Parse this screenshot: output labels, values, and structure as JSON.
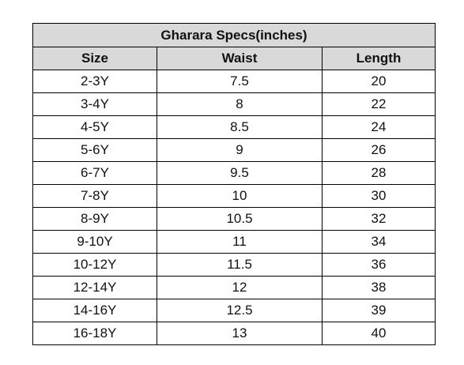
{
  "table": {
    "title": "Gharara Specs(inches)",
    "headers": [
      "Size",
      "Waist",
      "Length"
    ],
    "rows": [
      [
        "2-3Y",
        "7.5",
        "20"
      ],
      [
        "3-4Y",
        "8",
        "22"
      ],
      [
        "4-5Y",
        "8.5",
        "24"
      ],
      [
        "5-6Y",
        "9",
        "26"
      ],
      [
        "6-7Y",
        "9.5",
        "28"
      ],
      [
        "7-8Y",
        "10",
        "30"
      ],
      [
        "8-9Y",
        "10.5",
        "32"
      ],
      [
        "9-10Y",
        "11",
        "34"
      ],
      [
        "10-12Y",
        "11.5",
        "36"
      ],
      [
        "12-14Y",
        "12",
        "38"
      ],
      [
        "14-16Y",
        "12.5",
        "39"
      ],
      [
        "16-18Y",
        "13",
        "40"
      ]
    ]
  },
  "colors": {
    "header_background": "#d9d9d9",
    "border": "#000000",
    "text": "#111111"
  }
}
